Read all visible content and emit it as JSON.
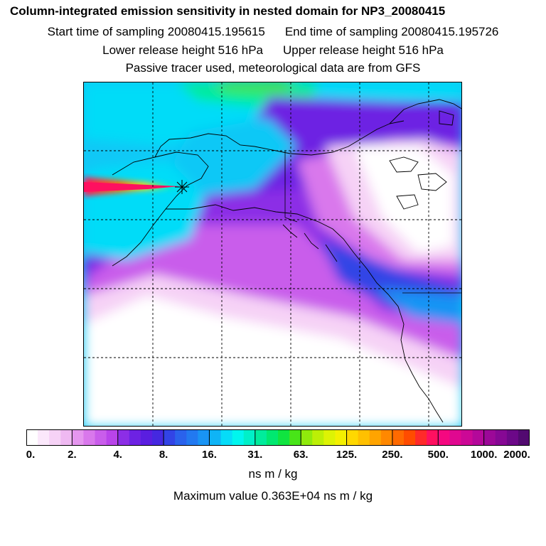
{
  "header": {
    "title": "Column-integrated emission sensitivity in nested domain for NP3_20080415",
    "start_label": "Start time of sampling 20080415.195615",
    "end_label": "End time of sampling 20080415.195726",
    "lower_release": "Lower release height  516 hPa",
    "upper_release": "Upper release height  516 hPa",
    "tracer_note": "Passive tracer used, meteorological data are from GFS"
  },
  "colorbar": {
    "tick_labels": [
      "0.",
      "2.",
      "4.",
      "8.",
      "16.",
      "31.",
      "63.",
      "125.",
      "250.",
      "500.",
      "1000.",
      "2000."
    ],
    "colors": [
      "#ffffff",
      "#fbe8fb",
      "#f6d2f6",
      "#efb9f2",
      "#e596ef",
      "#d978ec",
      "#c95deb",
      "#b944ea",
      "#8c2ee6",
      "#6d22e3",
      "#5a1ee0",
      "#4528e0",
      "#3244e6",
      "#2a62ec",
      "#2279f0",
      "#1994f4",
      "#0fb4f6",
      "#06dcf8",
      "#00f6ee",
      "#00f0c8",
      "#00ec9c",
      "#00e870",
      "#10e440",
      "#48e418",
      "#90ea0c",
      "#bcef06",
      "#ddf304",
      "#f4f000",
      "#ffd800",
      "#ffc000",
      "#ffa400",
      "#ff8800",
      "#ff6a00",
      "#ff4c00",
      "#ff2a2a",
      "#ff1060",
      "#f50880",
      "#e00890",
      "#cc0896",
      "#b4089a",
      "#9c0898",
      "#860894",
      "#6c0888",
      "#520a70"
    ],
    "units": "ns m / kg",
    "max_value": "Maximum value  0.363E+04 ns m / kg"
  },
  "chart_data": {
    "type": "heatmap",
    "title": "Column-integrated emission sensitivity in nested domain for NP3_20080415",
    "color_scale": "log",
    "levels": [
      0,
      2,
      4,
      8,
      16,
      31,
      63,
      125,
      250,
      500,
      1000,
      2000
    ],
    "units": "ns m / kg",
    "maximum": 3630,
    "grid": true,
    "legend": "bottom"
  }
}
